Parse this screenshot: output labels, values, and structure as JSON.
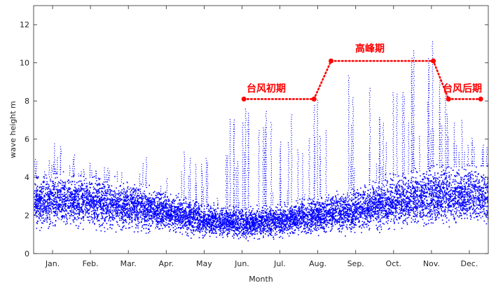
{
  "chart_data": {
    "type": "scatter",
    "title": "",
    "xlabel": "Month",
    "ylabel": "wave height m",
    "xlim": [
      0,
      12
    ],
    "ylim": [
      0,
      13
    ],
    "x_ticks": [
      "Jan.",
      "Feb.",
      "Mar.",
      "Apr.",
      "May",
      "Jun.",
      "Jul.",
      "Aug.",
      "Sep.",
      "Oct.",
      "Nov.",
      "Dec."
    ],
    "y_ticks": [
      0,
      2,
      4,
      6,
      8,
      10,
      12
    ],
    "grid": false,
    "colors": {
      "points": "#0000ff",
      "annotation": "#ff0000",
      "axis": "#262626"
    },
    "series": [
      {
        "description_of_trend_by_month": "baseline 0.5-4 m with storm spikes; higher in typhoon season",
        "envelope_by_month": [
          {
            "month": "Jan.",
            "low": 0.5,
            "typical_high": 4.2,
            "peak": 6.0
          },
          {
            "month": "Feb.",
            "low": 0.5,
            "typical_high": 4.0,
            "peak": 4.8
          },
          {
            "month": "Mar.",
            "low": 0.4,
            "typical_high": 3.7,
            "peak": 4.5
          },
          {
            "month": "Apr.",
            "low": 0.4,
            "typical_high": 3.2,
            "peak": 6.5
          },
          {
            "month": "May",
            "low": 0.3,
            "typical_high": 2.6,
            "peak": 5.1
          },
          {
            "month": "Jun.",
            "low": 0.3,
            "typical_high": 2.4,
            "peak": 8.2
          },
          {
            "month": "Jul.",
            "low": 0.3,
            "typical_high": 2.6,
            "peak": 7.3
          },
          {
            "month": "Aug.",
            "low": 0.4,
            "typical_high": 3.0,
            "peak": 10.7
          },
          {
            "month": "Sep.",
            "low": 0.4,
            "typical_high": 3.4,
            "peak": 10.2
          },
          {
            "month": "Oct.",
            "low": 0.5,
            "typical_high": 4.0,
            "peak": 9.6
          },
          {
            "month": "Nov.",
            "low": 0.5,
            "typical_high": 4.5,
            "peak": 11.8
          },
          {
            "month": "Dec.",
            "low": 0.5,
            "typical_high": 4.6,
            "peak": 6.3
          }
        ]
      }
    ],
    "annotations": [
      {
        "label": "台风初期",
        "points": [
          [
            5.55,
            8.1
          ],
          [
            7.4,
            8.1
          ]
        ]
      },
      {
        "label": "高峰期",
        "points": [
          [
            7.4,
            8.1
          ],
          [
            7.85,
            10.1
          ],
          [
            10.55,
            10.1
          ],
          [
            10.95,
            8.1
          ]
        ]
      },
      {
        "label": "台风后期",
        "points": [
          [
            10.95,
            8.1
          ],
          [
            11.8,
            8.1
          ]
        ]
      }
    ]
  }
}
